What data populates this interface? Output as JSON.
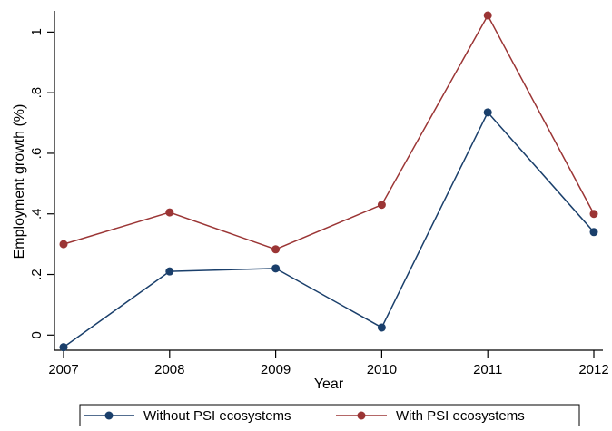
{
  "chart_data": {
    "type": "line",
    "title": "",
    "xlabel": "Year",
    "ylabel": "Employment growth (%)",
    "categories": [
      "2007",
      "2008",
      "2009",
      "2010",
      "2011",
      "2012"
    ],
    "x": [
      2007,
      2008,
      2009,
      2010,
      2011,
      2012
    ],
    "xlim": [
      2007,
      2012
    ],
    "ylim": [
      -0.05,
      1.07
    ],
    "y_ticks": [
      0,
      0.2,
      0.4,
      0.6,
      0.8,
      1
    ],
    "y_tick_labels": [
      "0",
      ".2",
      ".4",
      ".6",
      ".8",
      "1"
    ],
    "grid": false,
    "legend_position": "bottom",
    "series": [
      {
        "name": "Without PSI ecosystems",
        "color": "#1a3f6b",
        "values": [
          -0.04,
          0.21,
          0.22,
          0.025,
          0.735,
          0.34
        ]
      },
      {
        "name": "With PSI ecosystems",
        "color": "#9b3535",
        "values": [
          0.3,
          0.405,
          0.283,
          0.43,
          1.055,
          0.4
        ]
      }
    ]
  }
}
